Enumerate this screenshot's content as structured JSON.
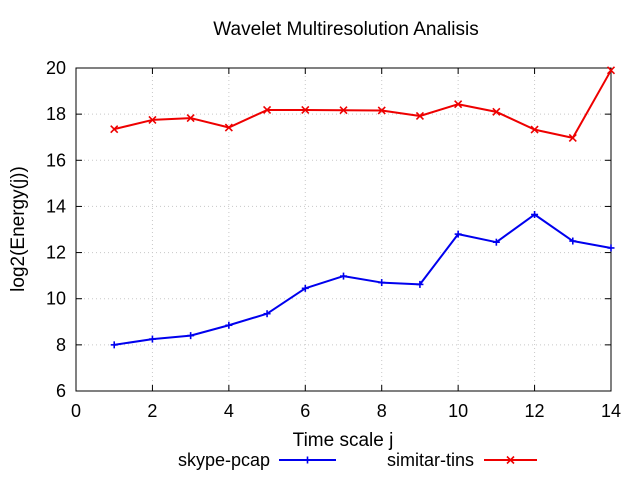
{
  "chart_data": {
    "type": "line",
    "title": "Wavelet Multiresolution Analisis",
    "xlabel": "Time scale j",
    "ylabel": "log2(Energy(j))",
    "xlim": [
      0,
      14
    ],
    "ylim": [
      6,
      20
    ],
    "xticks": [
      0,
      2,
      4,
      6,
      8,
      10,
      12,
      14
    ],
    "yticks": [
      6,
      8,
      10,
      12,
      14,
      16,
      18,
      20
    ],
    "grid": true,
    "legend_position": "bottom",
    "x": [
      1,
      2,
      3,
      4,
      5,
      6,
      7,
      8,
      9,
      10,
      11,
      12,
      13,
      14
    ],
    "series": [
      {
        "name": "skype-pcap",
        "color": "#0000ee",
        "marker": "plus",
        "values": [
          8.0,
          8.25,
          8.4,
          8.85,
          9.35,
          10.45,
          10.98,
          10.7,
          10.62,
          12.8,
          12.45,
          13.65,
          12.5,
          12.2
        ]
      },
      {
        "name": "simitar-tins",
        "color": "#ee0000",
        "marker": "cross",
        "values": [
          17.35,
          17.75,
          17.83,
          17.42,
          18.18,
          18.18,
          18.17,
          18.16,
          17.92,
          18.43,
          18.1,
          17.33,
          16.97,
          19.9
        ]
      }
    ]
  }
}
